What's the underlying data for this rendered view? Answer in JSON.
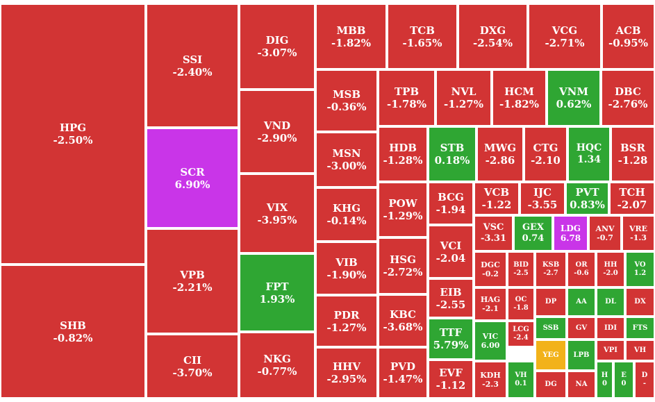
{
  "colors": {
    "down": "#d23434",
    "up": "#2fa633",
    "ceiling": "#c935e8",
    "unchanged": "#f2b21a"
  },
  "chart_data": {
    "type": "heatmap",
    "items": [
      {
        "symbol": "HPG",
        "change": "-2.50%",
        "status": "down"
      },
      {
        "symbol": "SHB",
        "change": "-0.82%",
        "status": "down"
      },
      {
        "symbol": "SSI",
        "change": "-2.40%",
        "status": "down"
      },
      {
        "symbol": "SCR",
        "change": "6.90%",
        "status": "ceiling"
      },
      {
        "symbol": "VPB",
        "change": "-2.21%",
        "status": "down"
      },
      {
        "symbol": "CII",
        "change": "-3.70%",
        "status": "down"
      },
      {
        "symbol": "DIG",
        "change": "-3.07%",
        "status": "down"
      },
      {
        "symbol": "VND",
        "change": "-2.90%",
        "status": "down"
      },
      {
        "symbol": "VIX",
        "change": "-3.95%",
        "status": "down"
      },
      {
        "symbol": "FPT",
        "change": "1.93%",
        "status": "up"
      },
      {
        "symbol": "NKG",
        "change": "-0.77%",
        "status": "down"
      },
      {
        "symbol": "MBB",
        "change": "-1.82%",
        "status": "down"
      },
      {
        "symbol": "TCB",
        "change": "-1.65%",
        "status": "down"
      },
      {
        "symbol": "DXG",
        "change": "-2.54%",
        "status": "down"
      },
      {
        "symbol": "VCG",
        "change": "-2.71%",
        "status": "down"
      },
      {
        "symbol": "ACB",
        "change": "-0.95%",
        "status": "down"
      },
      {
        "symbol": "MSB",
        "change": "-0.36%",
        "status": "down"
      },
      {
        "symbol": "TPB",
        "change": "-1.78%",
        "status": "down"
      },
      {
        "symbol": "NVL",
        "change": "-1.27%",
        "status": "down"
      },
      {
        "symbol": "HCM",
        "change": "-1.82%",
        "status": "down"
      },
      {
        "symbol": "VNM",
        "change": "0.62%",
        "status": "up"
      },
      {
        "symbol": "DBC",
        "change": "-2.76%",
        "status": "down"
      },
      {
        "symbol": "MSN",
        "change": "-3.00%",
        "status": "down"
      },
      {
        "symbol": "HDB",
        "change": "-1.28%",
        "status": "down"
      },
      {
        "symbol": "STB",
        "change": "0.18%",
        "status": "up"
      },
      {
        "symbol": "MWG",
        "change": "-2.86",
        "status": "down"
      },
      {
        "symbol": "CTG",
        "change": "-2.10",
        "status": "down"
      },
      {
        "symbol": "HQC",
        "change": "1.34",
        "status": "up"
      },
      {
        "symbol": "BSR",
        "change": "-1.28",
        "status": "down"
      },
      {
        "symbol": "KHG",
        "change": "-0.14%",
        "status": "down"
      },
      {
        "symbol": "POW",
        "change": "-1.29%",
        "status": "down"
      },
      {
        "symbol": "BCG",
        "change": "-1.94",
        "status": "down"
      },
      {
        "symbol": "VCB",
        "change": "-1.22",
        "status": "down"
      },
      {
        "symbol": "IJC",
        "change": "-3.55",
        "status": "down"
      },
      {
        "symbol": "PVT",
        "change": "0.83%",
        "status": "up"
      },
      {
        "symbol": "TCH",
        "change": "-2.07",
        "status": "down"
      },
      {
        "symbol": "VCI",
        "change": "-2.04",
        "status": "down"
      },
      {
        "symbol": "VSC",
        "change": "-3.31",
        "status": "down"
      },
      {
        "symbol": "GEX",
        "change": "0.74",
        "status": "up"
      },
      {
        "symbol": "LDG",
        "change": "6.78",
        "status": "ceiling"
      },
      {
        "symbol": "ANV",
        "change": "-0.7",
        "status": "down"
      },
      {
        "symbol": "VRE",
        "change": "-1.3",
        "status": "down"
      },
      {
        "symbol": "VIB",
        "change": "-1.90%",
        "status": "down"
      },
      {
        "symbol": "HSG",
        "change": "-2.72%",
        "status": "down"
      },
      {
        "symbol": "DGC",
        "change": "-0.2",
        "status": "down"
      },
      {
        "symbol": "BID",
        "change": "-2.5",
        "status": "down"
      },
      {
        "symbol": "KSB",
        "change": "-2.7",
        "status": "down"
      },
      {
        "symbol": "OR",
        "change": "-0.6",
        "status": "down"
      },
      {
        "symbol": "HH",
        "change": "-2.0",
        "status": "down"
      },
      {
        "symbol": "VO",
        "change": "1.2",
        "status": "up"
      },
      {
        "symbol": "EIB",
        "change": "-2.55",
        "status": "down"
      },
      {
        "symbol": "HAG",
        "change": "-2.1",
        "status": "down"
      },
      {
        "symbol": "OC",
        "change": "-1.8",
        "status": "down"
      },
      {
        "symbol": "DP",
        "change": "",
        "status": "down"
      },
      {
        "symbol": "AA",
        "change": "",
        "status": "up"
      },
      {
        "symbol": "DL",
        "change": "",
        "status": "up"
      },
      {
        "symbol": "DX",
        "change": "",
        "status": "down"
      },
      {
        "symbol": "PDR",
        "change": "-1.27%",
        "status": "down"
      },
      {
        "symbol": "KBC",
        "change": "-3.68%",
        "status": "down"
      },
      {
        "symbol": "SSB",
        "change": "",
        "status": "up"
      },
      {
        "symbol": "GV",
        "change": "",
        "status": "down"
      },
      {
        "symbol": "IDI",
        "change": "",
        "status": "down"
      },
      {
        "symbol": "FTS",
        "change": "",
        "status": "up"
      },
      {
        "symbol": "TTF",
        "change": "5.79%",
        "status": "up"
      },
      {
        "symbol": "VIC",
        "change": "6.00",
        "status": "up"
      },
      {
        "symbol": "LCG",
        "change": "-2.4",
        "status": "down"
      },
      {
        "symbol": "YEG",
        "change": "",
        "status": "unchanged"
      },
      {
        "symbol": "LPB",
        "change": "",
        "status": "up"
      },
      {
        "symbol": "VPI",
        "change": "",
        "status": "down"
      },
      {
        "symbol": "VH",
        "change": "",
        "status": "down"
      },
      {
        "symbol": "HHV",
        "change": "-2.95%",
        "status": "down"
      },
      {
        "symbol": "PVD",
        "change": "-1.47%",
        "status": "down"
      },
      {
        "symbol": "EVF",
        "change": "-1.12",
        "status": "down"
      },
      {
        "symbol": "KDH",
        "change": "-2.3",
        "status": "down"
      },
      {
        "symbol": "VH",
        "change": "0.1",
        "status": "up"
      },
      {
        "symbol": "DG",
        "change": "",
        "status": "down"
      },
      {
        "symbol": "NA",
        "change": "",
        "status": "down"
      },
      {
        "symbol": "H",
        "change": "0",
        "status": "up"
      },
      {
        "symbol": "E",
        "change": "0",
        "status": "up"
      },
      {
        "symbol": "D",
        "change": "-",
        "status": "down"
      }
    ]
  }
}
